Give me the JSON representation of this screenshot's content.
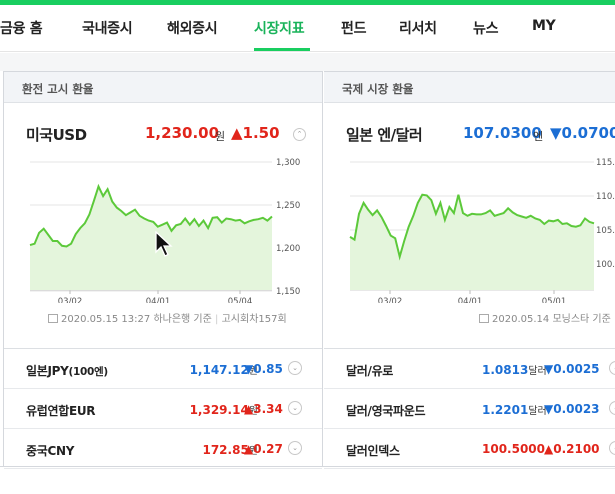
{
  "nav": {
    "items": [
      {
        "label": "금융 홈",
        "active": false
      },
      {
        "label": "국내증시",
        "active": false
      },
      {
        "label": "해외증시",
        "active": false
      },
      {
        "label": "시장지표",
        "active": true
      },
      {
        "label": "펀드",
        "active": false
      },
      {
        "label": "리서치",
        "active": false
      },
      {
        "label": "뉴스",
        "active": false
      },
      {
        "label": "MY",
        "active": false
      }
    ]
  },
  "left": {
    "header": "환전 고시 환율",
    "main": {
      "name": "미국USD",
      "price": "1,230.00",
      "unit": "원",
      "change": "▲1.50",
      "direction": "up",
      "toggle": "⌃"
    },
    "chart_data": {
      "type": "area",
      "x_ticks": [
        "03/02",
        "04/01",
        "05/04"
      ],
      "y_ticks": [
        "1,300",
        "1,250",
        "1,200",
        "1,150"
      ],
      "ylim": [
        1125,
        1310
      ],
      "values": [
        1188,
        1190,
        1206,
        1212,
        1203,
        1194,
        1194,
        1187,
        1186,
        1190,
        1204,
        1213,
        1220,
        1233,
        1253,
        1274,
        1260,
        1270,
        1252,
        1243,
        1238,
        1232,
        1236,
        1240,
        1231,
        1227,
        1224,
        1222,
        1215,
        1218,
        1221,
        1209,
        1217,
        1219,
        1227,
        1218,
        1226,
        1216,
        1224,
        1213,
        1228,
        1229,
        1221,
        1227,
        1226,
        1224,
        1225,
        1220,
        1223,
        1225,
        1226,
        1228,
        1224,
        1230
      ]
    },
    "source": {
      "date": "2020.05.15 13:27",
      "bank": "하나은행 기준",
      "round": "고시회차157회"
    },
    "rows": [
      {
        "name": "일본JPY",
        "name_sub": "(100엔)",
        "price": "1,147.12",
        "unit": "원",
        "change": "▼0.85",
        "direction": "down"
      },
      {
        "name": "유럽연합EUR",
        "name_sub": "",
        "price": "1,329.14",
        "unit": "원",
        "change": "▲3.34",
        "direction": "up"
      },
      {
        "name": "중국CNY",
        "name_sub": "",
        "price": "172.85",
        "unit": "원",
        "change": "▲0.27",
        "direction": "up"
      }
    ]
  },
  "right": {
    "header": "국제 시장 환율",
    "main": {
      "name": "일본 엔/달러",
      "price": "107.0300",
      "unit": "엔",
      "change": "▼0.0700",
      "direction": "down"
    },
    "chart_data": {
      "type": "area",
      "x_ticks": [
        "03/02",
        "04/01",
        "05/01"
      ],
      "y_ticks": [
        "115.",
        "110.",
        "105.",
        "100."
      ],
      "ylim": [
        97.5,
        116
      ],
      "values": [
        105.0,
        104.6,
        108.4,
        110.0,
        109.0,
        108.2,
        108.9,
        107.9,
        106.6,
        105.2,
        104.8,
        102.1,
        104.4,
        106.5,
        108.1,
        110.0,
        111.2,
        111.1,
        110.4,
        108.4,
        110.0,
        107.5,
        109.4,
        108.5,
        111.2,
        108.5,
        108.1,
        108.4,
        108.3,
        108.3,
        108.5,
        108.9,
        108.1,
        108.3,
        108.5,
        109.2,
        108.6,
        108.2,
        108.0,
        107.8,
        108.1,
        107.7,
        107.5,
        106.9,
        107.4,
        107.3,
        107.5,
        106.9,
        107.0,
        106.6,
        106.5,
        106.7,
        107.7,
        107.2,
        107.0
      ]
    },
    "source": {
      "date": "2020.05.14",
      "provider": "모닝스타 기준"
    },
    "rows": [
      {
        "name": "달러/유로",
        "price": "1.0813",
        "unit": "달러",
        "change": "▼0.0025",
        "direction": "down"
      },
      {
        "name": "달러/영국파운드",
        "price": "1.2201",
        "unit": "달러",
        "change": "▼0.0023",
        "direction": "down"
      },
      {
        "name": "달러인덱스",
        "price": "100.5000",
        "unit": "",
        "change": "▲0.2100",
        "direction": "up"
      }
    ]
  },
  "colors": {
    "accent": "#19ce60",
    "up": "#e1251b",
    "down": "#1c6ed4",
    "line": "#5cc93a"
  }
}
